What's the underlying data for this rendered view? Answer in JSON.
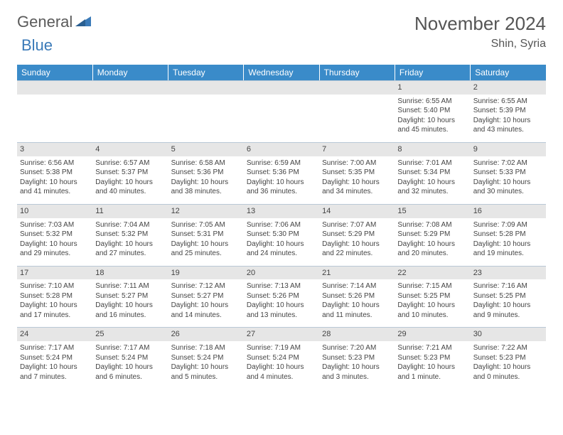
{
  "logo": {
    "text_gray": "General",
    "text_blue": "Blue"
  },
  "header": {
    "month_title": "November 2024",
    "location": "Shin, Syria"
  },
  "colors": {
    "header_bg": "#3a8bc9",
    "header_text": "#ffffff",
    "daynum_bg": "#e6e6e6",
    "border": "#b9c8d6",
    "logo_blue": "#3a7ab8",
    "logo_gray": "#5a5a5a"
  },
  "daynames": [
    "Sunday",
    "Monday",
    "Tuesday",
    "Wednesday",
    "Thursday",
    "Friday",
    "Saturday"
  ],
  "weeks": [
    [
      {
        "n": "",
        "body": ""
      },
      {
        "n": "",
        "body": ""
      },
      {
        "n": "",
        "body": ""
      },
      {
        "n": "",
        "body": ""
      },
      {
        "n": "",
        "body": ""
      },
      {
        "n": "1",
        "body": "Sunrise: 6:55 AM\nSunset: 5:40 PM\nDaylight: 10 hours and 45 minutes."
      },
      {
        "n": "2",
        "body": "Sunrise: 6:55 AM\nSunset: 5:39 PM\nDaylight: 10 hours and 43 minutes."
      }
    ],
    [
      {
        "n": "3",
        "body": "Sunrise: 6:56 AM\nSunset: 5:38 PM\nDaylight: 10 hours and 41 minutes."
      },
      {
        "n": "4",
        "body": "Sunrise: 6:57 AM\nSunset: 5:37 PM\nDaylight: 10 hours and 40 minutes."
      },
      {
        "n": "5",
        "body": "Sunrise: 6:58 AM\nSunset: 5:36 PM\nDaylight: 10 hours and 38 minutes."
      },
      {
        "n": "6",
        "body": "Sunrise: 6:59 AM\nSunset: 5:36 PM\nDaylight: 10 hours and 36 minutes."
      },
      {
        "n": "7",
        "body": "Sunrise: 7:00 AM\nSunset: 5:35 PM\nDaylight: 10 hours and 34 minutes."
      },
      {
        "n": "8",
        "body": "Sunrise: 7:01 AM\nSunset: 5:34 PM\nDaylight: 10 hours and 32 minutes."
      },
      {
        "n": "9",
        "body": "Sunrise: 7:02 AM\nSunset: 5:33 PM\nDaylight: 10 hours and 30 minutes."
      }
    ],
    [
      {
        "n": "10",
        "body": "Sunrise: 7:03 AM\nSunset: 5:32 PM\nDaylight: 10 hours and 29 minutes."
      },
      {
        "n": "11",
        "body": "Sunrise: 7:04 AM\nSunset: 5:32 PM\nDaylight: 10 hours and 27 minutes."
      },
      {
        "n": "12",
        "body": "Sunrise: 7:05 AM\nSunset: 5:31 PM\nDaylight: 10 hours and 25 minutes."
      },
      {
        "n": "13",
        "body": "Sunrise: 7:06 AM\nSunset: 5:30 PM\nDaylight: 10 hours and 24 minutes."
      },
      {
        "n": "14",
        "body": "Sunrise: 7:07 AM\nSunset: 5:29 PM\nDaylight: 10 hours and 22 minutes."
      },
      {
        "n": "15",
        "body": "Sunrise: 7:08 AM\nSunset: 5:29 PM\nDaylight: 10 hours and 20 minutes."
      },
      {
        "n": "16",
        "body": "Sunrise: 7:09 AM\nSunset: 5:28 PM\nDaylight: 10 hours and 19 minutes."
      }
    ],
    [
      {
        "n": "17",
        "body": "Sunrise: 7:10 AM\nSunset: 5:28 PM\nDaylight: 10 hours and 17 minutes."
      },
      {
        "n": "18",
        "body": "Sunrise: 7:11 AM\nSunset: 5:27 PM\nDaylight: 10 hours and 16 minutes."
      },
      {
        "n": "19",
        "body": "Sunrise: 7:12 AM\nSunset: 5:27 PM\nDaylight: 10 hours and 14 minutes."
      },
      {
        "n": "20",
        "body": "Sunrise: 7:13 AM\nSunset: 5:26 PM\nDaylight: 10 hours and 13 minutes."
      },
      {
        "n": "21",
        "body": "Sunrise: 7:14 AM\nSunset: 5:26 PM\nDaylight: 10 hours and 11 minutes."
      },
      {
        "n": "22",
        "body": "Sunrise: 7:15 AM\nSunset: 5:25 PM\nDaylight: 10 hours and 10 minutes."
      },
      {
        "n": "23",
        "body": "Sunrise: 7:16 AM\nSunset: 5:25 PM\nDaylight: 10 hours and 9 minutes."
      }
    ],
    [
      {
        "n": "24",
        "body": "Sunrise: 7:17 AM\nSunset: 5:24 PM\nDaylight: 10 hours and 7 minutes."
      },
      {
        "n": "25",
        "body": "Sunrise: 7:17 AM\nSunset: 5:24 PM\nDaylight: 10 hours and 6 minutes."
      },
      {
        "n": "26",
        "body": "Sunrise: 7:18 AM\nSunset: 5:24 PM\nDaylight: 10 hours and 5 minutes."
      },
      {
        "n": "27",
        "body": "Sunrise: 7:19 AM\nSunset: 5:24 PM\nDaylight: 10 hours and 4 minutes."
      },
      {
        "n": "28",
        "body": "Sunrise: 7:20 AM\nSunset: 5:23 PM\nDaylight: 10 hours and 3 minutes."
      },
      {
        "n": "29",
        "body": "Sunrise: 7:21 AM\nSunset: 5:23 PM\nDaylight: 10 hours and 1 minute."
      },
      {
        "n": "30",
        "body": "Sunrise: 7:22 AM\nSunset: 5:23 PM\nDaylight: 10 hours and 0 minutes."
      }
    ]
  ]
}
